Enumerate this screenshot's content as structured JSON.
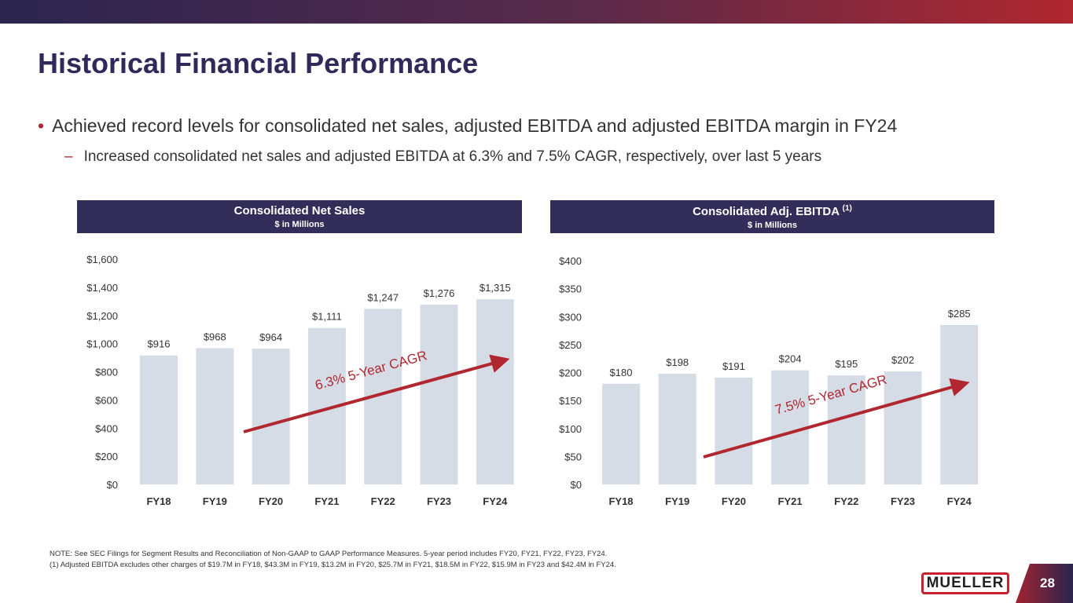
{
  "title": "Historical Financial Performance",
  "bullet": "Achieved record levels for consolidated net sales, adjusted EBITDA and adjusted EBITDA margin in FY24",
  "sub_bullet": "Increased consolidated net sales and adjusted EBITDA at 6.3% and 7.5% CAGR, respectively, over last 5 years",
  "note1": "NOTE:  See SEC Filings for Segment Results and Reconciliation of Non-GAAP to GAAP Performance Measures. 5-year period includes FY20, FY21, FY22, FY23, FY24.",
  "note2": "(1)  Adjusted EBITDA excludes other charges of $19.7M in FY18, $43.3M in FY19, $13.2M in FY20, $25.7M in FY21, $18.5M in FY22, $15.9M in FY23 and $42.4M in FY24.",
  "logo": "MUELLER",
  "page_number": "28",
  "colors": {
    "bar": "#d6dce5",
    "header": "#332d59",
    "accent": "#b0272f"
  },
  "chart_data": [
    {
      "type": "bar",
      "title": "Consolidated Net Sales",
      "subtitle": "$ in Millions",
      "footnote": "",
      "categories": [
        "FY18",
        "FY19",
        "FY20",
        "FY21",
        "FY22",
        "FY23",
        "FY24"
      ],
      "values": [
        916,
        968,
        964,
        1111,
        1247,
        1276,
        1315
      ],
      "labels": [
        "$916",
        "$968",
        "$964",
        "$1,111",
        "$1,247",
        "$1,276",
        "$1,315"
      ],
      "ylim": [
        0,
        1600
      ],
      "yticks": [
        0,
        200,
        400,
        600,
        800,
        1000,
        1200,
        1400,
        1600
      ],
      "ytick_labels": [
        "$0",
        "$200",
        "$400",
        "$600",
        "$800",
        "$1,000",
        "$1,200",
        "$1,400",
        "$1,600"
      ],
      "annotation": "6.3% 5-Year CAGR"
    },
    {
      "type": "bar",
      "title": "Consolidated Adj. EBITDA",
      "footnote": "(1)",
      "subtitle": "$ in Millions",
      "categories": [
        "FY18",
        "FY19",
        "FY20",
        "FY21",
        "FY22",
        "FY23",
        "FY24"
      ],
      "values": [
        180,
        198,
        191,
        204,
        195,
        202,
        285
      ],
      "labels": [
        "$180",
        "$198",
        "$191",
        "$204",
        "$195",
        "$202",
        "$285"
      ],
      "ylim": [
        0,
        400
      ],
      "yticks": [
        0,
        50,
        100,
        150,
        200,
        250,
        300,
        350,
        400
      ],
      "ytick_labels": [
        "$0",
        "$50",
        "$100",
        "$150",
        "$200",
        "$250",
        "$300",
        "$350",
        "$400"
      ],
      "annotation": "7.5% 5-Year CAGR"
    }
  ]
}
